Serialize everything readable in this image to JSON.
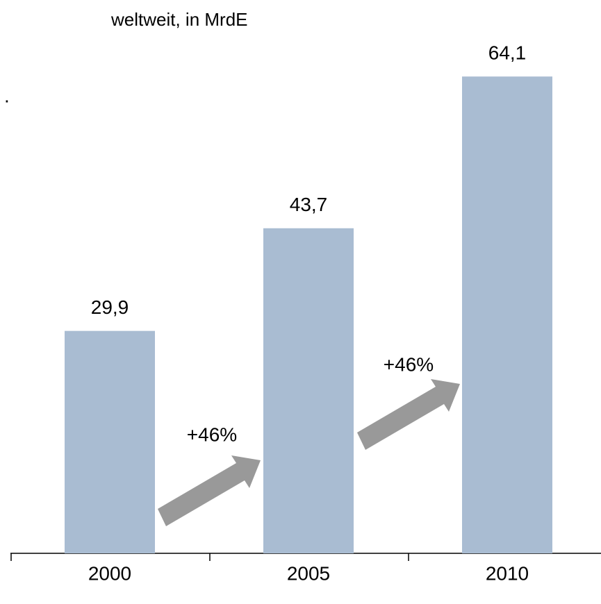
{
  "chart_data": {
    "type": "bar",
    "subtitle": "weltweit, in MrdE",
    "categories": [
      "2000",
      "2005",
      "2010"
    ],
    "values": [
      29.9,
      43.7,
      64.1
    ],
    "value_labels": [
      "29,9",
      "43,7",
      "64,1"
    ],
    "color": "#a9bcd2",
    "ylim": [
      0,
      70
    ],
    "annotations": [
      "+46%",
      "+46%"
    ],
    "mark": "."
  }
}
